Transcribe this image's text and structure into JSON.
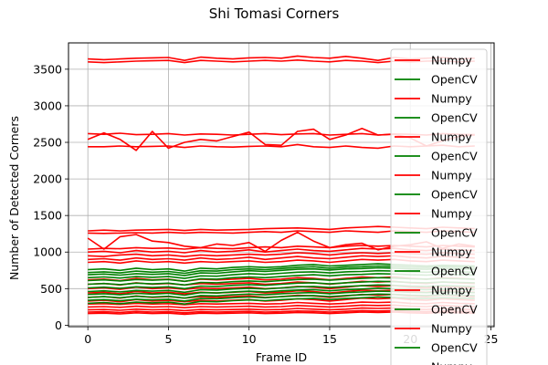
{
  "chart_data": {
    "type": "line",
    "title": "Shi Tomasi Corners",
    "xlabel": "Frame ID",
    "ylabel": "Number of Detected Corners",
    "xlim": [
      -1.2,
      25.2
    ],
    "ylim": [
      -20,
      3860
    ],
    "xticks": [
      0,
      5,
      10,
      15,
      20,
      25
    ],
    "yticks": [
      0,
      500,
      1000,
      1500,
      2000,
      2500,
      3000,
      3500
    ],
    "grid": true,
    "legend_position": "top-right",
    "legend": [
      {
        "label": "Numpy",
        "color": "#ff0000"
      },
      {
        "label": "OpenCV",
        "color": "#008000"
      },
      {
        "label": "Numpy",
        "color": "#ff0000"
      },
      {
        "label": "OpenCV",
        "color": "#008000"
      },
      {
        "label": "Numpy",
        "color": "#ff0000"
      },
      {
        "label": "OpenCV",
        "color": "#008000"
      },
      {
        "label": "Numpy",
        "color": "#ff0000"
      },
      {
        "label": "OpenCV",
        "color": "#008000"
      },
      {
        "label": "Numpy",
        "color": "#ff0000"
      },
      {
        "label": "OpenCV",
        "color": "#008000"
      },
      {
        "label": "Numpy",
        "color": "#ff0000"
      },
      {
        "label": "OpenCV",
        "color": "#008000"
      },
      {
        "label": "Numpy",
        "color": "#ff0000"
      },
      {
        "label": "OpenCV",
        "color": "#008000"
      },
      {
        "label": "Numpy",
        "color": "#ff0000"
      },
      {
        "label": "OpenCV",
        "color": "#008000"
      },
      {
        "label": "Numpy",
        "color": "#ff0000"
      }
    ],
    "x": [
      0,
      1,
      2,
      3,
      4,
      5,
      6,
      7,
      8,
      9,
      10,
      11,
      12,
      13,
      14,
      15,
      16,
      17,
      18,
      19,
      20,
      21,
      22,
      23,
      24
    ],
    "series": [
      {
        "color": "#ff0000",
        "values": [
          3640,
          3630,
          3640,
          3650,
          3655,
          3660,
          3620,
          3665,
          3650,
          3640,
          3655,
          3660,
          3650,
          3680,
          3660,
          3650,
          3675,
          3650,
          3620,
          3660,
          3640,
          3650,
          3660,
          3640,
          3650
        ]
      },
      {
        "color": "#ff0000",
        "values": [
          3600,
          3590,
          3600,
          3610,
          3615,
          3620,
          3590,
          3620,
          3610,
          3600,
          3610,
          3620,
          3610,
          3625,
          3610,
          3600,
          3620,
          3610,
          3590,
          3610,
          3600,
          3610,
          3615,
          3600,
          3610
        ]
      },
      {
        "color": "#ff0000",
        "values": [
          2620,
          2610,
          2625,
          2605,
          2610,
          2620,
          2600,
          2615,
          2610,
          2600,
          2610,
          2620,
          2605,
          2615,
          2620,
          2600,
          2610,
          2620,
          2600,
          2615,
          2610,
          2600,
          2620,
          2610,
          2605
        ]
      },
      {
        "color": "#ff0000",
        "values": [
          2540,
          2630,
          2540,
          2390,
          2650,
          2420,
          2500,
          2540,
          2520,
          2580,
          2640,
          2470,
          2460,
          2650,
          2680,
          2540,
          2600,
          2690,
          2600,
          2610,
          2560,
          2450,
          2520,
          2580,
          2600
        ]
      },
      {
        "color": "#ff0000",
        "values": [
          2440,
          2440,
          2450,
          2440,
          2445,
          2450,
          2430,
          2450,
          2440,
          2435,
          2445,
          2450,
          2440,
          2470,
          2440,
          2430,
          2450,
          2430,
          2420,
          2450,
          2440,
          2450,
          2460,
          2440,
          2450
        ]
      },
      {
        "color": "#ff0000",
        "values": [
          1290,
          1300,
          1290,
          1300,
          1305,
          1310,
          1295,
          1310,
          1300,
          1305,
          1310,
          1320,
          1325,
          1330,
          1320,
          1310,
          1330,
          1340,
          1350,
          1340,
          1330,
          1320,
          1340,
          1330,
          1320
        ]
      },
      {
        "color": "#ff0000",
        "values": [
          1260,
          1255,
          1260,
          1265,
          1260,
          1270,
          1260,
          1270,
          1265,
          1260,
          1270,
          1280,
          1270,
          1290,
          1280,
          1270,
          1290,
          1280,
          1270,
          1290,
          1280,
          1270,
          1290,
          1280,
          1270
        ]
      },
      {
        "color": "#ff0000",
        "values": [
          1190,
          1040,
          1210,
          1240,
          1150,
          1130,
          1080,
          1060,
          1110,
          1090,
          1130,
          1010,
          1160,
          1270,
          1150,
          1060,
          1100,
          1120,
          1030,
          1080,
          1100,
          1140,
          1050,
          1110,
          1080
        ]
      },
      {
        "color": "#ff0000",
        "values": [
          1040,
          1050,
          1045,
          1060,
          1050,
          1055,
          1040,
          1060,
          1050,
          1045,
          1060,
          1070,
          1060,
          1080,
          1070,
          1060,
          1080,
          1090,
          1080,
          1090,
          1080,
          1070,
          1090,
          1080,
          1070
        ]
      },
      {
        "color": "#ff0000",
        "values": [
          1000,
          1010,
          990,
          1020,
          1000,
          1010,
          990,
          1020,
          1000,
          1010,
          1030,
          1000,
          1020,
          1040,
          1020,
          1010,
          1030,
          1050,
          1040,
          1050,
          1030,
          1020,
          1040,
          1030,
          1020
        ]
      },
      {
        "color": "#ff0000",
        "values": [
          950,
          940,
          960,
          970,
          950,
          960,
          940,
          960,
          950,
          960,
          970,
          960,
          970,
          990,
          980,
          960,
          980,
          990,
          980,
          990,
          980,
          970,
          990,
          980,
          970
        ]
      },
      {
        "color": "#ff0000",
        "values": [
          900,
          910,
          890,
          920,
          900,
          910,
          890,
          920,
          900,
          910,
          930,
          900,
          920,
          940,
          920,
          910,
          930,
          950,
          940,
          950,
          930,
          920,
          940,
          930,
          920
        ]
      },
      {
        "color": "#ff0000",
        "values": [
          860,
          870,
          850,
          880,
          860,
          870,
          850,
          870,
          860,
          870,
          880,
          860,
          870,
          890,
          880,
          860,
          880,
          900,
          890,
          900,
          880,
          870,
          890,
          880,
          870
        ]
      },
      {
        "color": "#ff0000",
        "values": [
          620,
          630,
          610,
          640,
          620,
          630,
          600,
          630,
          620,
          630,
          640,
          620,
          630,
          650,
          640,
          620,
          640,
          660,
          650,
          660,
          640,
          630,
          650,
          640,
          630
        ]
      },
      {
        "color": "#ff0000",
        "values": [
          560,
          570,
          550,
          580,
          560,
          570,
          550,
          570,
          560,
          570,
          580,
          560,
          570,
          590,
          580,
          560,
          580,
          600,
          590,
          600,
          580,
          570,
          590,
          580,
          570
        ]
      },
      {
        "color": "#ff0000",
        "values": [
          500,
          510,
          490,
          520,
          500,
          510,
          490,
          510,
          500,
          510,
          520,
          500,
          510,
          530,
          520,
          500,
          520,
          540,
          530,
          540,
          520,
          510,
          530,
          520,
          510
        ]
      },
      {
        "color": "#ff0000",
        "values": [
          440,
          450,
          430,
          460,
          440,
          450,
          430,
          450,
          440,
          450,
          460,
          440,
          450,
          470,
          460,
          440,
          460,
          480,
          470,
          480,
          460,
          450,
          470,
          460,
          450
        ]
      },
      {
        "color": "#ff0000",
        "values": [
          380,
          390,
          370,
          400,
          380,
          390,
          370,
          390,
          380,
          390,
          400,
          380,
          390,
          410,
          400,
          380,
          400,
          420,
          410,
          420,
          400,
          390,
          410,
          400,
          390
        ]
      },
      {
        "color": "#ff0000",
        "values": [
          330,
          340,
          320,
          350,
          330,
          340,
          320,
          340,
          330,
          340,
          350,
          330,
          340,
          360,
          350,
          330,
          350,
          370,
          360,
          370,
          350,
          340,
          360,
          350,
          340
        ]
      },
      {
        "color": "#ff0000",
        "values": [
          290,
          295,
          285,
          300,
          290,
          295,
          280,
          295,
          290,
          295,
          300,
          290,
          295,
          310,
          300,
          290,
          300,
          315,
          310,
          315,
          300,
          295,
          310,
          300,
          295
        ]
      },
      {
        "color": "#ff0000",
        "values": [
          250,
          255,
          245,
          260,
          250,
          255,
          240,
          255,
          250,
          255,
          260,
          250,
          255,
          270,
          260,
          250,
          260,
          275,
          270,
          275,
          260,
          255,
          270,
          260,
          255
        ]
      },
      {
        "color": "#ff0000",
        "values": [
          210,
          215,
          205,
          220,
          210,
          215,
          200,
          215,
          210,
          215,
          220,
          210,
          215,
          230,
          220,
          210,
          220,
          235,
          230,
          235,
          220,
          215,
          230,
          220,
          215
        ]
      },
      {
        "color": "#ff0000",
        "values": [
          180,
          185,
          175,
          190,
          180,
          185,
          170,
          185,
          180,
          185,
          190,
          180,
          185,
          195,
          190,
          180,
          190,
          200,
          195,
          200,
          190,
          185,
          195,
          190,
          185
        ]
      },
      {
        "color": "#ff0000",
        "values": [
          160,
          165,
          155,
          170,
          160,
          165,
          150,
          165,
          160,
          165,
          170,
          160,
          165,
          175,
          170,
          160,
          170,
          180,
          175,
          180,
          170,
          165,
          175,
          170,
          165
        ]
      },
      {
        "color": "#008000",
        "values": [
          760,
          770,
          750,
          780,
          760,
          770,
          740,
          780,
          770,
          790,
          800,
          790,
          800,
          820,
          830,
          810,
          820,
          830,
          840,
          830,
          820,
          810,
          820,
          815,
          810
        ]
      },
      {
        "color": "#008000",
        "values": [
          720,
          730,
          715,
          740,
          725,
          735,
          710,
          745,
          740,
          760,
          770,
          760,
          775,
          790,
          800,
          780,
          795,
          800,
          810,
          805,
          795,
          790,
          800,
          795,
          790
        ]
      },
      {
        "color": "#008000",
        "values": [
          690,
          700,
          685,
          705,
          695,
          705,
          680,
          715,
          710,
          730,
          745,
          735,
          750,
          765,
          770,
          755,
          770,
          775,
          785,
          780,
          770,
          765,
          775,
          770,
          765
        ]
      },
      {
        "color": "#008000",
        "values": [
          650,
          660,
          645,
          665,
          655,
          665,
          640,
          675,
          670,
          690,
          705,
          695,
          710,
          725,
          730,
          715,
          730,
          735,
          745,
          740,
          730,
          725,
          735,
          730,
          725
        ]
      },
      {
        "color": "#008000",
        "values": [
          610,
          620,
          605,
          625,
          615,
          625,
          600,
          635,
          630,
          650,
          660,
          650,
          665,
          680,
          690,
          675,
          690,
          695,
          705,
          700,
          690,
          685,
          695,
          690,
          685
        ]
      },
      {
        "color": "#008000",
        "values": [
          560,
          570,
          555,
          575,
          565,
          575,
          550,
          585,
          580,
          595,
          605,
          595,
          610,
          625,
          630,
          615,
          630,
          640,
          650,
          645,
          635,
          630,
          640,
          635,
          630
        ]
      },
      {
        "color": "#008000",
        "values": [
          510,
          520,
          505,
          525,
          515,
          525,
          500,
          535,
          530,
          545,
          555,
          545,
          560,
          575,
          580,
          565,
          580,
          590,
          600,
          595,
          585,
          580,
          590,
          585,
          580
        ]
      },
      {
        "color": "#008000",
        "values": [
          460,
          470,
          455,
          475,
          465,
          475,
          450,
          485,
          480,
          495,
          505,
          495,
          510,
          525,
          530,
          515,
          530,
          540,
          550,
          545,
          535,
          530,
          540,
          535,
          530
        ]
      },
      {
        "color": "#008000",
        "values": [
          420,
          430,
          415,
          435,
          425,
          435,
          410,
          445,
          440,
          455,
          465,
          455,
          470,
          480,
          485,
          470,
          485,
          495,
          505,
          500,
          490,
          485,
          495,
          490,
          485
        ]
      },
      {
        "color": "#008000",
        "values": [
          380,
          390,
          375,
          395,
          385,
          395,
          370,
          405,
          400,
          415,
          425,
          415,
          430,
          440,
          445,
          430,
          445,
          455,
          465,
          460,
          450,
          445,
          455,
          450,
          445
        ]
      },
      {
        "color": "#008000",
        "values": [
          340,
          350,
          335,
          355,
          345,
          355,
          330,
          365,
          360,
          375,
          385,
          375,
          390,
          400,
          405,
          390,
          405,
          415,
          425,
          420,
          410,
          405,
          415,
          410,
          405
        ]
      },
      {
        "color": "#008000",
        "values": [
          300,
          310,
          295,
          315,
          305,
          315,
          290,
          325,
          320,
          335,
          345,
          335,
          350,
          360,
          365,
          350,
          365,
          375,
          385,
          380,
          370,
          365,
          375,
          370,
          365
        ]
      }
    ]
  }
}
